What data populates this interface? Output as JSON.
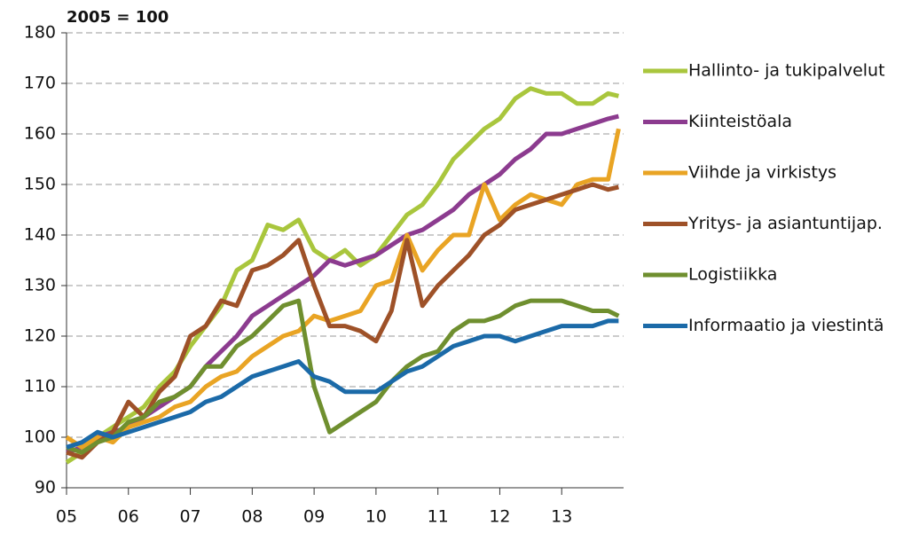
{
  "chart_data": {
    "type": "line",
    "y_label": "2005 = 100",
    "x": [
      2005,
      2005.25,
      2005.5,
      2005.75,
      2006,
      2006.25,
      2006.5,
      2006.75,
      2007,
      2007.25,
      2007.5,
      2007.75,
      2008,
      2008.25,
      2008.5,
      2008.75,
      2009,
      2009.25,
      2009.5,
      2009.75,
      2010,
      2010.25,
      2010.5,
      2010.75,
      2011,
      2011.25,
      2011.5,
      2011.75,
      2012,
      2012.25,
      2012.5,
      2012.75,
      2013,
      2013.25,
      2013.5,
      2013.75,
      2013.92
    ],
    "xlim": [
      2005,
      2014
    ],
    "xticks": [
      {
        "value": 2005,
        "label": "05"
      },
      {
        "value": 2006,
        "label": "06"
      },
      {
        "value": 2007,
        "label": "07"
      },
      {
        "value": 2008,
        "label": "08"
      },
      {
        "value": 2009,
        "label": "09"
      },
      {
        "value": 2010,
        "label": "10"
      },
      {
        "value": 2011,
        "label": "11"
      },
      {
        "value": 2012,
        "label": "12"
      },
      {
        "value": 2013,
        "label": "13"
      }
    ],
    "ylim": [
      90,
      180
    ],
    "yticks": [
      90,
      100,
      110,
      120,
      130,
      140,
      150,
      160,
      170,
      180
    ],
    "grid": true,
    "legend": "right",
    "series": [
      {
        "name": "Hallinto- ja tukipalvelut",
        "color": "#a9c63d",
        "values": [
          95,
          97,
          100,
          102,
          104,
          106,
          110,
          113,
          118,
          122,
          126,
          133,
          135,
          142,
          141,
          143,
          137,
          135,
          137,
          134,
          136,
          140,
          144,
          146,
          150,
          155,
          158,
          161,
          163,
          167,
          169,
          168,
          168,
          166,
          166,
          168,
          167.5
        ]
      },
      {
        "name": "Kiinteistöala",
        "color": "#8c3b8f",
        "values": [
          97,
          98,
          100,
          101,
          102,
          104,
          106,
          108,
          110,
          114,
          117,
          120,
          124,
          126,
          128,
          130,
          132,
          135,
          134,
          135,
          136,
          138,
          140,
          141,
          143,
          145,
          148,
          150,
          152,
          155,
          157,
          160,
          160,
          161,
          162,
          163,
          163.5
        ]
      },
      {
        "name": "Viihde ja virkistys",
        "color": "#e9a424",
        "values": [
          100,
          98,
          100,
          99,
          102,
          103,
          104,
          106,
          107,
          110,
          112,
          113,
          116,
          118,
          120,
          121,
          124,
          123,
          124,
          125,
          130,
          131,
          140,
          133,
          137,
          140,
          140,
          150,
          143,
          146,
          148,
          147,
          146,
          150,
          151,
          151,
          161
        ]
      },
      {
        "name": "Yritys- ja asiantuntijap.",
        "color": "#9e5128",
        "values": [
          97,
          96,
          99,
          101,
          107,
          104,
          109,
          112,
          120,
          122,
          127,
          126,
          133,
          134,
          136,
          139,
          130,
          122,
          122,
          121,
          119,
          125,
          139,
          126,
          130,
          133,
          136,
          140,
          142,
          145,
          146,
          147,
          148,
          149,
          150,
          149,
          149.5
        ]
      },
      {
        "name": "Logistiikka",
        "color": "#6f8f2f",
        "values": [
          98,
          97,
          99,
          100,
          103,
          104,
          107,
          108,
          110,
          114,
          114,
          118,
          120,
          123,
          126,
          127,
          110,
          101,
          103,
          105,
          107,
          111,
          114,
          116,
          117,
          121,
          123,
          123,
          124,
          126,
          127,
          127,
          127,
          126,
          125,
          125,
          124
        ]
      },
      {
        "name": "Informaatio ja viestintä",
        "color": "#1b6aa8",
        "values": [
          98,
          99,
          101,
          100,
          101,
          102,
          103,
          104,
          105,
          107,
          108,
          110,
          112,
          113,
          114,
          115,
          112,
          111,
          109,
          109,
          109,
          111,
          113,
          114,
          116,
          118,
          119,
          120,
          120,
          119,
          120,
          121,
          122,
          122,
          122,
          123,
          123
        ]
      }
    ]
  }
}
